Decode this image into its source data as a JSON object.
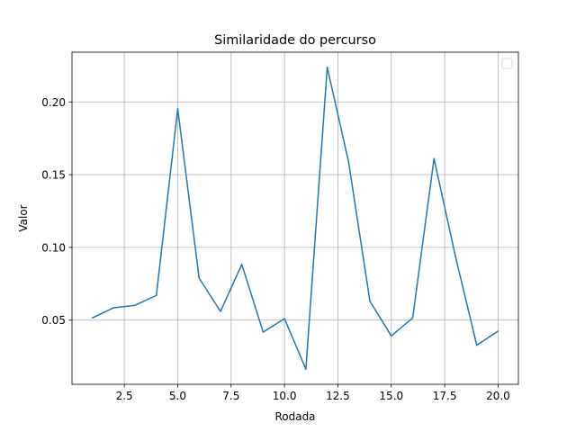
{
  "chart_data": {
    "type": "line",
    "title": "Similaridade do percurso",
    "xlabel": "Rodada",
    "ylabel": "Valor",
    "x": [
      1,
      2,
      3,
      4,
      5,
      6,
      7,
      8,
      9,
      10,
      11,
      12,
      13,
      14,
      15,
      16,
      17,
      18,
      19,
      20
    ],
    "series": [
      {
        "values": [
          0.0515,
          0.0585,
          0.0602,
          0.067,
          0.1953,
          0.079,
          0.056,
          0.0883,
          0.0418,
          0.051,
          0.0163,
          0.2238,
          0.1587,
          0.063,
          0.0392,
          0.0515,
          0.161,
          0.094,
          0.0328,
          0.0425
        ],
        "color": "#1f77b4"
      }
    ],
    "xlim": [
      0.05,
      20.95
    ],
    "ylim": [
      0.0059,
      0.2342
    ],
    "xticks": [
      2.5,
      5.0,
      7.5,
      10.0,
      12.5,
      15.0,
      17.5,
      20.0
    ],
    "xtick_labels": [
      "2.5",
      "5.0",
      "7.5",
      "10.0",
      "12.5",
      "15.0",
      "17.5",
      "20.0"
    ],
    "yticks": [
      0.05,
      0.1,
      0.15,
      0.2
    ],
    "ytick_labels": [
      "0.05",
      "0.10",
      "0.15",
      "0.20"
    ],
    "grid": true,
    "legend": {
      "placement": "upper right",
      "entries": []
    }
  }
}
